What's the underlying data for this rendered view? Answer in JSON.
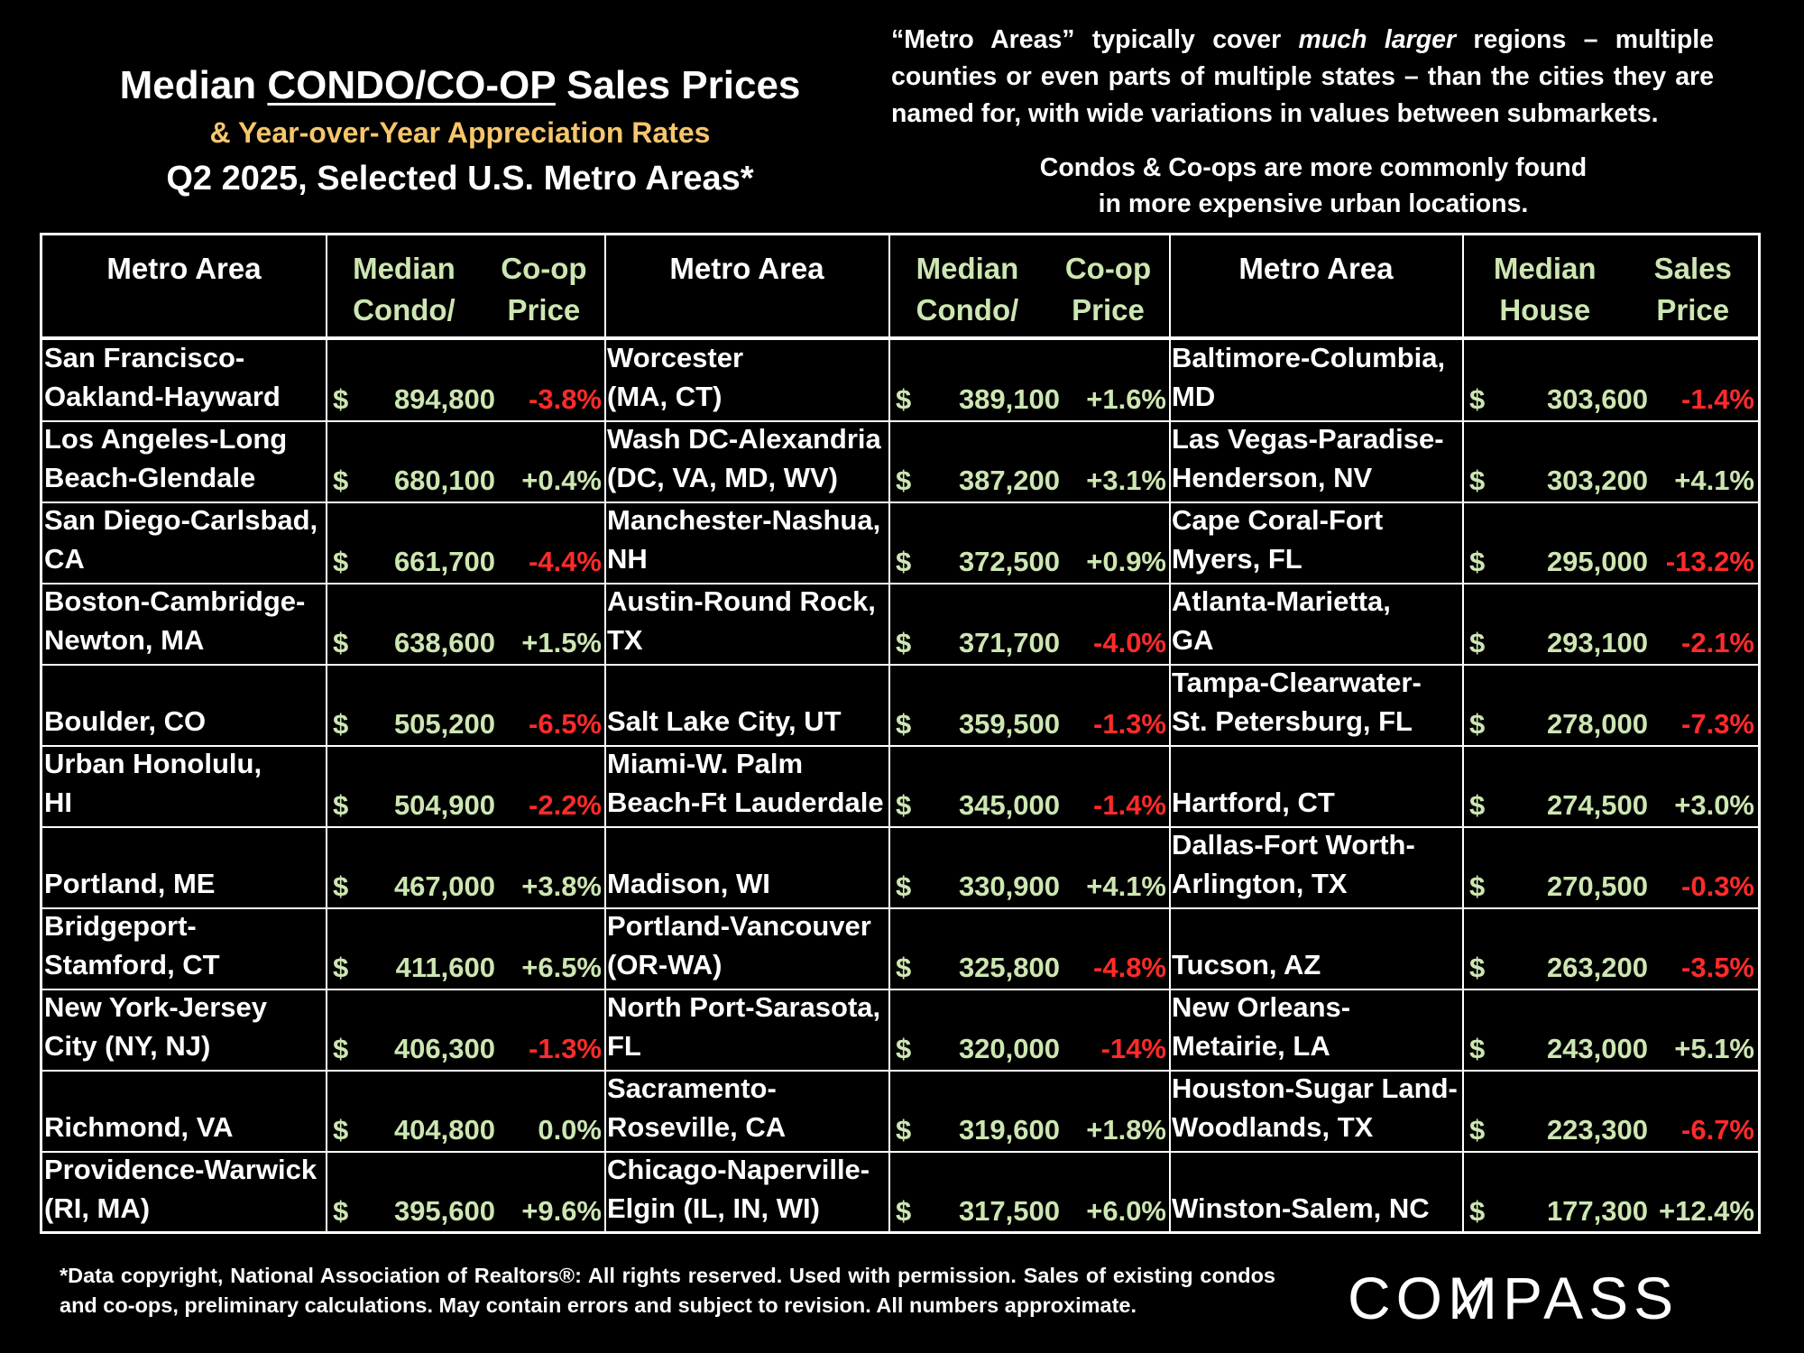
{
  "title": {
    "line1_pre": "Median ",
    "line1_underlined": "CONDO/CO-OP",
    "line1_post": " Sales Prices",
    "line2": "& Year-over-Year Appreciation Rates",
    "line3": "Q2 2025, Selected U.S. Metro Areas*"
  },
  "note": {
    "part1": "“Metro Areas” typically cover ",
    "part2_italic": "much larger",
    "part3": " regions – multiple counties or even parts of multiple states – than the cities they are named for, with wide variations in values between submarkets.",
    "line2a": "Condos & Co-ops are more commonly found",
    "line2b": "in more expensive urban locations."
  },
  "colors": {
    "background": "#000000",
    "price": "#cde6b2",
    "negative": "#ff2b2b",
    "subtitle": "#f5c66b"
  },
  "chart_data": {
    "type": "table",
    "title": "Median CONDO/CO-OP Sales Prices & Year-over-Year Appreciation Rates, Q2 2025, Selected U.S. Metro Areas*",
    "columns": [
      {
        "header_metro": "Metro Area",
        "header_price_line1": "Median Condo/",
        "header_price_line2": "Co-op Price",
        "rows": [
          {
            "metro1": "San Francisco-",
            "metro2": "Oakland-Hayward",
            "dollar": "$",
            "price": "894,800",
            "change": "-3.8%"
          },
          {
            "metro1": "Los Angeles-Long",
            "metro2": "Beach-Glendale",
            "dollar": "$",
            "price": "680,100",
            "change": "+0.4%"
          },
          {
            "metro1": "San Diego-Carlsbad,",
            "metro2": "CA",
            "dollar": "$",
            "price": "661,700",
            "change": "-4.4%"
          },
          {
            "metro1": "Boston-Cambridge-",
            "metro2": "Newton, MA",
            "dollar": "$",
            "price": "638,600",
            "change": "+1.5%"
          },
          {
            "metro1": "",
            "metro2": "Boulder, CO",
            "dollar": "$",
            "price": "505,200",
            "change": "-6.5%"
          },
          {
            "metro1": "Urban Honolulu,",
            "metro2": "HI",
            "dollar": "$",
            "price": "504,900",
            "change": "-2.2%"
          },
          {
            "metro1": "",
            "metro2": "Portland, ME",
            "dollar": "$",
            "price": "467,000",
            "change": "+3.8%"
          },
          {
            "metro1": "Bridgeport-",
            "metro2": "Stamford, CT",
            "dollar": "$",
            "price": "411,600",
            "change": "+6.5%"
          },
          {
            "metro1": "New York-Jersey",
            "metro2": "City (NY, NJ)",
            "dollar": "$",
            "price": "406,300",
            "change": "-1.3%"
          },
          {
            "metro1": "",
            "metro2": "Richmond, VA",
            "dollar": "$",
            "price": "404,800",
            "change": "0.0%"
          },
          {
            "metro1": "Providence-Warwick",
            "metro2": "(RI, MA)",
            "dollar": "$",
            "price": "395,600",
            "change": "+9.6%"
          }
        ]
      },
      {
        "header_metro": "Metro Area",
        "header_price_line1": "Median Condo/",
        "header_price_line2": "Co-op Price",
        "rows": [
          {
            "metro1": "Worcester",
            "metro2": "(MA, CT)",
            "dollar": "$",
            "price": "389,100",
            "change": "+1.6%"
          },
          {
            "metro1": "Wash DC-Alexandria",
            "metro2": " (DC, VA, MD, WV)",
            "dollar": "$",
            "price": "387,200",
            "change": "+3.1%"
          },
          {
            "metro1": "Manchester-Nashua,",
            "metro2": "NH",
            "dollar": "$",
            "price": "372,500",
            "change": "+0.9%"
          },
          {
            "metro1": "Austin-Round Rock,",
            "metro2": "TX",
            "dollar": "$",
            "price": "371,700",
            "change": "-4.0%"
          },
          {
            "metro1": "",
            "metro2": "Salt Lake City, UT",
            "dollar": "$",
            "price": "359,500",
            "change": "-1.3%"
          },
          {
            "metro1": "Miami-W. Palm",
            "metro2": "Beach-Ft Lauderdale",
            "dollar": "$",
            "price": "345,000",
            "change": "-1.4%"
          },
          {
            "metro1": "",
            "metro2": "Madison, WI",
            "dollar": "$",
            "price": "330,900",
            "change": "+4.1%"
          },
          {
            "metro1": "Portland-Vancouver",
            "metro2": "(OR-WA)",
            "dollar": "$",
            "price": "325,800",
            "change": "-4.8%"
          },
          {
            "metro1": "North Port-Sarasota,",
            "metro2": "FL",
            "dollar": "$",
            "price": "320,000",
            "change": "-14%"
          },
          {
            "metro1": "Sacramento-",
            "metro2": "Roseville, CA",
            "dollar": "$",
            "price": "319,600",
            "change": "+1.8%"
          },
          {
            "metro1": "Chicago-Naperville-",
            "metro2": "Elgin (IL, IN, WI)",
            "dollar": "$",
            "price": "317,500",
            "change": "+6.0%"
          }
        ]
      },
      {
        "header_metro": "Metro Area",
        "header_price_line1": "Median House",
        "header_price_line2": "Sales Price",
        "rows": [
          {
            "metro1": "Baltimore-Columbia,",
            "metro2": "MD",
            "dollar": "$",
            "price": "303,600",
            "change": "-1.4%"
          },
          {
            "metro1": "Las Vegas-Paradise-",
            "metro2": "Henderson, NV",
            "dollar": "$",
            "price": "303,200",
            "change": "+4.1%"
          },
          {
            "metro1": "Cape Coral-Fort",
            "metro2": "Myers, FL",
            "dollar": "$",
            "price": "295,000",
            "change": "-13.2%"
          },
          {
            "metro1": "Atlanta-Marietta,",
            "metro2": "GA",
            "dollar": "$",
            "price": "293,100",
            "change": "-2.1%"
          },
          {
            "metro1": "Tampa-Clearwater-",
            "metro2": "St. Petersburg, FL",
            "dollar": "$",
            "price": "278,000",
            "change": "-7.3%"
          },
          {
            "metro1": "",
            "metro2": "Hartford, CT",
            "dollar": "$",
            "price": "274,500",
            "change": "+3.0%"
          },
          {
            "metro1": "Dallas-Fort Worth-",
            "metro2": "Arlington, TX",
            "dollar": "$",
            "price": "270,500",
            "change": "-0.3%"
          },
          {
            "metro1": "",
            "metro2": "Tucson, AZ",
            "dollar": "$",
            "price": "263,200",
            "change": "-3.5%"
          },
          {
            "metro1": "New Orleans-",
            "metro2": "Metairie, LA",
            "dollar": "$",
            "price": "243,000",
            "change": "+5.1%"
          },
          {
            "metro1": "Houston-Sugar Land-",
            "metro2": "Woodlands, TX",
            "dollar": "$",
            "price": "223,300",
            "change": "-6.7%"
          },
          {
            "metro1": "",
            "metro2": "Winston-Salem, NC",
            "dollar": "$",
            "price": "177,300",
            "change": "+12.4%"
          }
        ]
      }
    ]
  },
  "footnote": "*Data copyright, National Association of Realtors®: All rights reserved. Used with permission. Sales of existing condos and co-ops, preliminary calculations. May contain errors and subject to revision. All numbers approximate.",
  "logo": {
    "text": "COMPASS"
  }
}
